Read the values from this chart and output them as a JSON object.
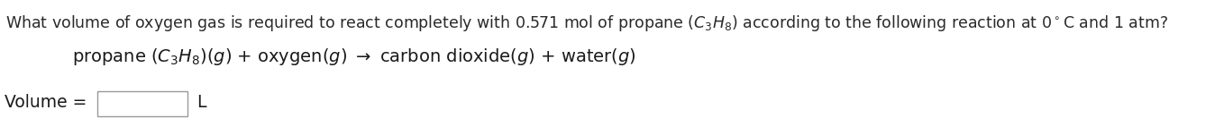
{
  "bg_color": "#ffffff",
  "text_color_q": "#2a2a2a",
  "text_color_eq": "#1a1a1a",
  "text_color_vol": "#1a1a1a",
  "font_size_q": 12.5,
  "font_size_eq": 14.0,
  "font_size_vol": 13.5,
  "q_line1_plain": "What volume of oxygen gas is required to react completely with 0.571 mol of propane (C",
  "q_line1_sub3": "3",
  "q_line1_H": "H",
  "q_line1_sub8": "8",
  "q_line1_end": ") according to the following reaction at 0°C and 1 atm?",
  "vol_label": "Volume =",
  "vol_unit": "L",
  "box_color": "#aaaaaa"
}
